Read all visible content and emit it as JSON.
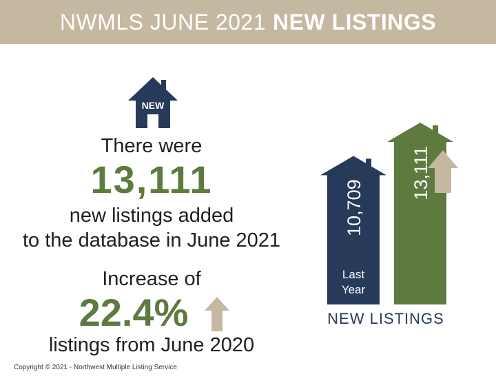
{
  "header": {
    "title_light": "NWMLS JUNE 2021",
    "title_bold": "NEW LISTINGS"
  },
  "house_badge": "NEW",
  "main": {
    "line1": "There were",
    "total": "13,111",
    "line2": "new listings added",
    "line3": "to the database in June 2021",
    "line4": "Increase of",
    "percent": "22.4%",
    "line5": "listings from June 2020"
  },
  "copyright": "Copyright © 2021 - Northwest Multiple Listing Service",
  "colors": {
    "header_bg": "#c4b8a1",
    "navy": "#283a5a",
    "green": "#5e7a3f",
    "beige": "#c4b8a1"
  },
  "icons": [
    "house-icon",
    "up-arrow-icon"
  ],
  "chart_data": {
    "type": "bar",
    "title": "NEW LISTINGS",
    "categories": [
      "Last Year",
      ""
    ],
    "values": [
      10709,
      13111
    ],
    "value_labels": [
      "10,709",
      "13,111"
    ],
    "ylim": [
      0,
      13111
    ]
  }
}
